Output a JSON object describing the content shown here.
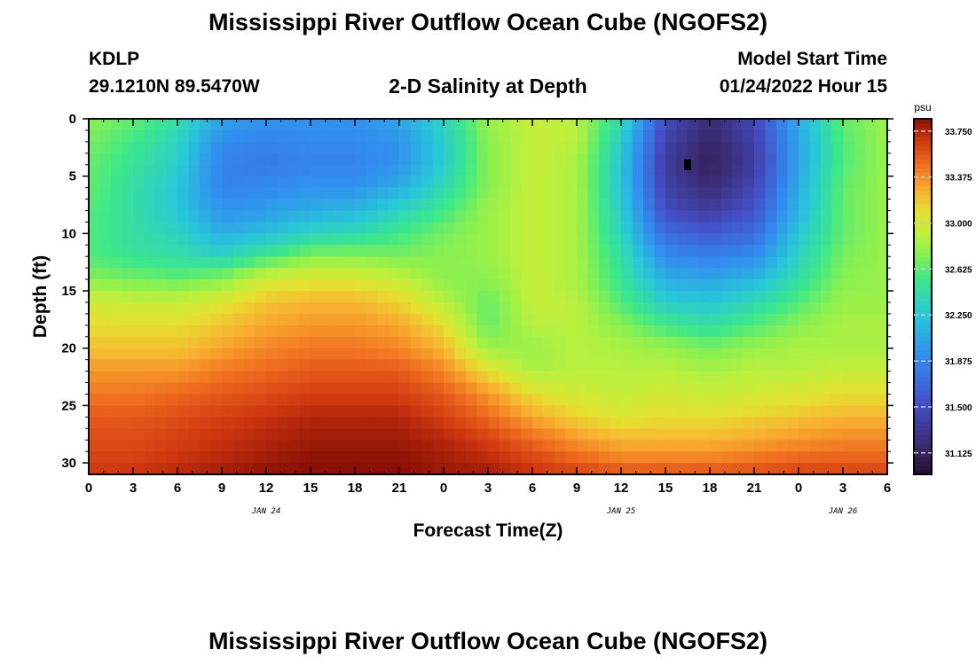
{
  "header": {
    "title": "Mississippi River Outflow Ocean Cube (NGOFS2)",
    "station": "KDLP",
    "coords": "29.1210N  89.5470W",
    "subtitle": "2-D Salinity at Depth",
    "model_start_label": "Model Start Time",
    "model_start_value": "01/24/2022 Hour 15"
  },
  "footer": {
    "title": "Mississippi River Outflow Ocean Cube (NGOFS2)"
  },
  "chart_data": {
    "type": "heatmap",
    "title": "2-D Salinity at Depth",
    "xlabel": "Forecast Time(Z)",
    "ylabel": "Depth (ft)",
    "x_range_hours": [
      0,
      54
    ],
    "y_range_ft": [
      0,
      31
    ],
    "y_inverted": true,
    "x_tick_labels": [
      "0",
      "3",
      "6",
      "9",
      "12",
      "15",
      "18",
      "21",
      "0",
      "3",
      "6",
      "9",
      "12",
      "15",
      "18",
      "21",
      "0",
      "3",
      "6"
    ],
    "y_tick_labels": [
      "0",
      "5",
      "10",
      "15",
      "20",
      "25",
      "30"
    ],
    "y_tick_values": [
      0,
      5,
      10,
      15,
      20,
      25,
      30
    ],
    "date_labels": [
      {
        "label": "JAN 24",
        "hour": 12
      },
      {
        "label": "JAN 25",
        "hour": 36
      },
      {
        "label": "JAN 26",
        "hour": 51
      }
    ],
    "colorbar": {
      "unit": "psu",
      "min": 30.95,
      "max": 33.85,
      "tick_labels": [
        "33.750",
        "33.375",
        "33.000",
        "32.625",
        "32.250",
        "31.875",
        "31.500",
        "31.125"
      ],
      "tick_values": [
        33.75,
        33.375,
        33.0,
        32.625,
        32.25,
        31.875,
        31.5,
        31.125
      ]
    },
    "field": {
      "depths_ft": [
        0,
        2,
        4,
        6,
        8,
        10,
        12,
        14,
        16,
        18,
        20,
        22,
        24,
        26,
        28,
        30,
        31
      ],
      "hours": [
        0,
        3,
        6,
        9,
        12,
        15,
        18,
        21,
        24,
        27,
        30,
        33,
        36,
        39,
        42,
        45,
        48,
        51,
        54
      ],
      "values": [
        [
          32.75,
          32.65,
          32.45,
          32.05,
          31.95,
          31.95,
          31.95,
          32.05,
          32.35,
          32.8,
          32.95,
          32.9,
          32.4,
          31.5,
          31.2,
          31.45,
          32.1,
          32.65,
          32.8
        ],
        [
          32.7,
          32.55,
          32.35,
          31.9,
          31.85,
          31.9,
          31.9,
          31.95,
          32.3,
          32.75,
          32.95,
          32.9,
          32.3,
          31.4,
          31.15,
          31.4,
          32.05,
          32.6,
          32.8
        ],
        [
          32.65,
          32.5,
          32.3,
          31.85,
          31.8,
          31.85,
          31.85,
          31.95,
          32.3,
          32.75,
          32.95,
          32.85,
          32.25,
          31.35,
          31.1,
          31.35,
          32.05,
          32.6,
          32.8
        ],
        [
          32.65,
          32.45,
          32.25,
          31.85,
          31.9,
          31.95,
          31.95,
          32.1,
          32.4,
          32.75,
          32.95,
          32.85,
          32.25,
          31.4,
          31.2,
          31.45,
          32.1,
          32.65,
          32.8
        ],
        [
          32.6,
          32.45,
          32.25,
          31.95,
          32.0,
          32.1,
          32.15,
          32.35,
          32.55,
          32.8,
          32.95,
          32.85,
          32.3,
          31.5,
          31.35,
          31.55,
          32.15,
          32.65,
          32.8
        ],
        [
          32.6,
          32.45,
          32.35,
          32.1,
          32.2,
          32.35,
          32.4,
          32.55,
          32.7,
          32.8,
          32.95,
          32.85,
          32.35,
          31.7,
          31.6,
          31.7,
          32.25,
          32.65,
          32.8
        ],
        [
          32.6,
          32.5,
          32.45,
          32.35,
          32.55,
          32.75,
          32.75,
          32.7,
          32.75,
          32.8,
          32.95,
          32.85,
          32.45,
          31.9,
          31.85,
          31.9,
          32.35,
          32.7,
          32.8
        ],
        [
          32.75,
          32.7,
          32.65,
          32.75,
          33.0,
          33.05,
          33.05,
          32.95,
          32.75,
          32.75,
          32.95,
          32.85,
          32.5,
          32.1,
          32.05,
          32.15,
          32.45,
          32.75,
          32.8
        ],
        [
          33.0,
          32.95,
          32.95,
          33.05,
          33.2,
          33.25,
          33.25,
          33.15,
          32.9,
          32.65,
          32.95,
          32.9,
          32.6,
          32.3,
          32.25,
          32.4,
          32.6,
          32.8,
          32.8
        ],
        [
          33.1,
          33.1,
          33.1,
          33.2,
          33.3,
          33.35,
          33.35,
          33.3,
          33.1,
          32.65,
          32.9,
          32.9,
          32.75,
          32.55,
          32.45,
          32.6,
          32.75,
          32.85,
          32.85
        ],
        [
          33.2,
          33.2,
          33.2,
          33.3,
          33.4,
          33.45,
          33.45,
          33.4,
          33.25,
          32.8,
          32.8,
          32.9,
          32.85,
          32.8,
          32.7,
          32.8,
          32.85,
          32.85,
          32.85
        ],
        [
          33.35,
          33.35,
          33.35,
          33.45,
          33.5,
          33.55,
          33.55,
          33.55,
          33.4,
          33.1,
          32.85,
          32.9,
          32.9,
          32.9,
          32.85,
          32.9,
          32.9,
          32.95,
          32.95
        ],
        [
          33.45,
          33.45,
          33.5,
          33.55,
          33.6,
          33.65,
          33.65,
          33.65,
          33.55,
          33.35,
          33.1,
          33.0,
          32.95,
          33.0,
          32.95,
          33.0,
          33.05,
          33.1,
          33.1
        ],
        [
          33.55,
          33.55,
          33.6,
          33.65,
          33.7,
          33.75,
          33.75,
          33.75,
          33.65,
          33.5,
          33.3,
          33.15,
          33.05,
          33.1,
          33.1,
          33.15,
          33.2,
          33.25,
          33.25
        ],
        [
          33.6,
          33.6,
          33.65,
          33.7,
          33.75,
          33.8,
          33.8,
          33.8,
          33.75,
          33.65,
          33.5,
          33.35,
          33.25,
          33.25,
          33.25,
          33.3,
          33.35,
          33.4,
          33.4
        ],
        [
          33.65,
          33.65,
          33.7,
          33.75,
          33.8,
          33.85,
          33.85,
          33.85,
          33.8,
          33.75,
          33.65,
          33.55,
          33.45,
          33.45,
          33.45,
          33.5,
          33.55,
          33.55,
          33.55
        ],
        [
          33.7,
          33.7,
          33.75,
          33.8,
          33.85,
          33.85,
          33.85,
          33.85,
          33.8,
          33.8,
          33.7,
          33.65,
          33.6,
          33.6,
          33.6,
          33.6,
          33.65,
          33.65,
          33.65
        ]
      ]
    },
    "marker": {
      "hour": 40.5,
      "depth_ft": 4
    }
  }
}
